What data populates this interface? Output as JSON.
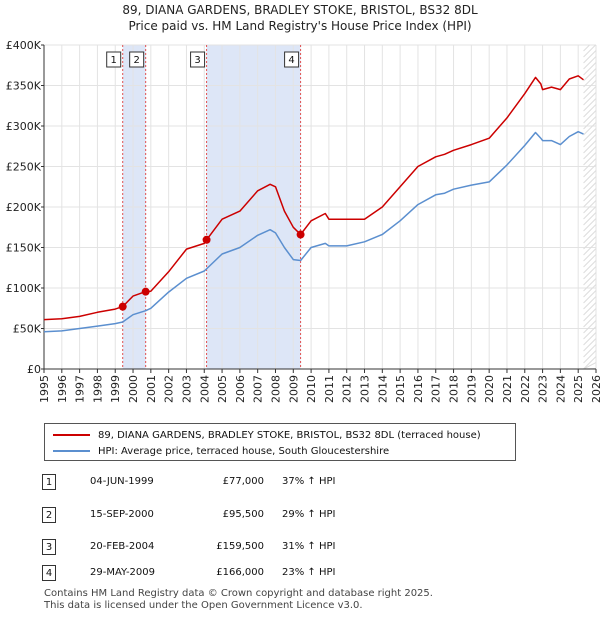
{
  "title_line1": "89, DIANA GARDENS, BRADLEY STOKE, BRISTOL, BS32 8DL",
  "title_line2": "Price paid vs. HM Land Registry's House Price Index (HPI)",
  "colors": {
    "price_line": "#cc0000",
    "hpi_line": "#5b8fcf",
    "shade": "#dde6f7",
    "marker_line": "#e05050",
    "grid": "#e3e3e3"
  },
  "chart_data": {
    "type": "line",
    "title": "89, DIANA GARDENS, BRADLEY STOKE, BRISTOL, BS32 8DL",
    "subtitle": "Price paid vs. HM Land Registry's House Price Index (HPI)",
    "xlabel": "",
    "ylabel": "",
    "xlim": [
      1995,
      2026
    ],
    "ylim": [
      0,
      400000
    ],
    "y_ticks": [
      {
        "value": 0,
        "label": "£0"
      },
      {
        "value": 50000,
        "label": "£50K"
      },
      {
        "value": 100000,
        "label": "£100K"
      },
      {
        "value": 150000,
        "label": "£150K"
      },
      {
        "value": 200000,
        "label": "£200K"
      },
      {
        "value": 250000,
        "label": "£250K"
      },
      {
        "value": 300000,
        "label": "£300K"
      },
      {
        "value": 350000,
        "label": "£350K"
      },
      {
        "value": 400000,
        "label": "£400K"
      }
    ],
    "x_ticks": [
      "1995",
      "1996",
      "1997",
      "1998",
      "1999",
      "2000",
      "2001",
      "2002",
      "2003",
      "2004",
      "2005",
      "2006",
      "2007",
      "2008",
      "2009",
      "2010",
      "2011",
      "2012",
      "2013",
      "2014",
      "2015",
      "2016",
      "2017",
      "2018",
      "2019",
      "2020",
      "2021",
      "2022",
      "2023",
      "2024",
      "2025",
      "2026"
    ],
    "grid": true,
    "shaded_ranges": [
      [
        1999.42,
        2000.71
      ],
      [
        2004.13,
        2009.41
      ]
    ],
    "series": [
      {
        "name": "89, DIANA GARDENS, BRADLEY STOKE, BRISTOL, BS32 8DL (terraced house)",
        "color": "#cc0000",
        "x": [
          1995,
          1996,
          1997,
          1998,
          1999,
          1999.42,
          2000,
          2000.71,
          2001,
          2002,
          2003,
          2004,
          2004.13,
          2005,
          2006,
          2007,
          2007.7,
          2008,
          2008.5,
          2009,
          2009.41,
          2010,
          2010.8,
          2011,
          2012,
          2013,
          2014,
          2015,
          2016,
          2017,
          2017.5,
          2018,
          2019,
          2020,
          2021,
          2022,
          2022.6,
          2022.9,
          2023,
          2023.5,
          2024,
          2024.5,
          2025,
          2025.3
        ],
        "values": [
          61000,
          62000,
          65000,
          70000,
          74000,
          77000,
          90000,
          95500,
          96000,
          120000,
          148000,
          155000,
          159500,
          185000,
          195000,
          220000,
          228000,
          225000,
          195000,
          175000,
          166000,
          183000,
          192000,
          185000,
          185000,
          185000,
          200000,
          225000,
          250000,
          262000,
          265000,
          270000,
          277000,
          285000,
          310000,
          340000,
          360000,
          352000,
          345000,
          348000,
          345000,
          358000,
          362000,
          357000
        ]
      },
      {
        "name": "HPI: Average price, terraced house, South Gloucestershire",
        "color": "#5b8fcf",
        "x": [
          1995,
          1996,
          1997,
          1998,
          1999,
          1999.42,
          2000,
          2000.71,
          2001,
          2002,
          2003,
          2004,
          2005,
          2006,
          2007,
          2007.7,
          2008,
          2008.5,
          2009,
          2009.41,
          2010,
          2010.8,
          2011,
          2012,
          2013,
          2014,
          2015,
          2016,
          2017,
          2017.5,
          2018,
          2019,
          2020,
          2021,
          2022,
          2022.6,
          2022.9,
          2023,
          2023.5,
          2024,
          2024.5,
          2025,
          2025.3
        ],
        "values": [
          46000,
          47000,
          50000,
          53000,
          56000,
          58000,
          67000,
          72000,
          75000,
          95000,
          112000,
          121000,
          142000,
          150000,
          165000,
          172000,
          168000,
          150000,
          135000,
          134000,
          150000,
          155000,
          152000,
          152000,
          157000,
          166000,
          183000,
          203000,
          215000,
          217000,
          222000,
          227000,
          231000,
          252000,
          276000,
          292000,
          285000,
          282000,
          282000,
          277000,
          287000,
          293000,
          290000
        ]
      }
    ],
    "transactions": [
      {
        "id": "1",
        "x": 1999.42,
        "value": 77000,
        "date": "04-JUN-1999",
        "price": "£77,000",
        "hpi": "37% ↑ HPI"
      },
      {
        "id": "2",
        "x": 2000.71,
        "value": 95500,
        "date": "15-SEP-2000",
        "price": "£95,500",
        "hpi": "29% ↑ HPI"
      },
      {
        "id": "3",
        "x": 2004.13,
        "value": 159500,
        "date": "20-FEB-2004",
        "price": "£159,500",
        "hpi": "31% ↑ HPI"
      },
      {
        "id": "4",
        "x": 2009.41,
        "value": 166000,
        "date": "29-MAY-2009",
        "price": "£166,000",
        "hpi": "23% ↑ HPI"
      }
    ]
  },
  "legend": {
    "price_label": "89, DIANA GARDENS, BRADLEY STOKE, BRISTOL, BS32 8DL (terraced house)",
    "hpi_label": "HPI: Average price, terraced house, South Gloucestershire"
  },
  "table": [
    {
      "num": "1",
      "date": "04-JUN-1999",
      "price": "£77,000",
      "hpi": "37% ↑ HPI"
    },
    {
      "num": "2",
      "date": "15-SEP-2000",
      "price": "£95,500",
      "hpi": "29% ↑ HPI"
    },
    {
      "num": "3",
      "date": "20-FEB-2004",
      "price": "£159,500",
      "hpi": "31% ↑ HPI"
    },
    {
      "num": "4",
      "date": "29-MAY-2009",
      "price": "£166,000",
      "hpi": "23% ↑ HPI"
    }
  ],
  "footer": {
    "line1": "Contains HM Land Registry data © Crown copyright and database right 2025.",
    "line2": "This data is licensed under the Open Government Licence v3.0."
  }
}
